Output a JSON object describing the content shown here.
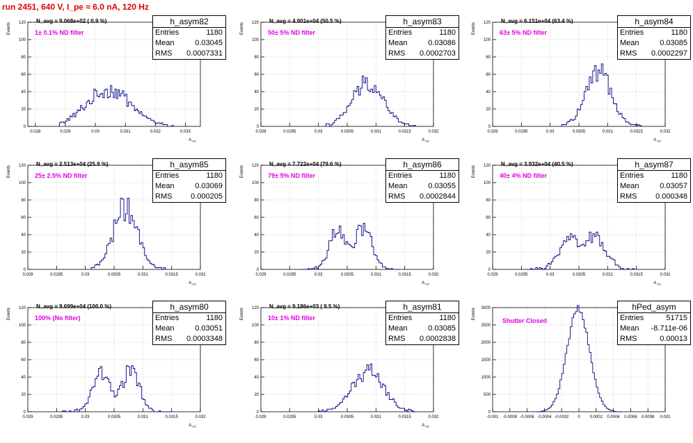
{
  "run_title": "run 2451,   640 V, I_pe ≈ 6.0 nA, 120 Hz",
  "chart_data": [
    {
      "type": "bar",
      "name": "h_asym82",
      "n_avg": "N_avg = 9.068e+02 ( 0.9 %)",
      "note": "1± 0.1% ND filter",
      "entries": "1180",
      "mean": "0.03045",
      "rms": "0.0007331",
      "ylabel": "Events",
      "xlabel": "A_UD",
      "ylim": [
        0,
        120
      ],
      "yticks": [
        "0",
        "20",
        "40",
        "60",
        "80",
        "100",
        "120"
      ],
      "xlim": [
        0.02775,
        0.0335
      ],
      "xticks": [
        {
          "v": 0.028,
          "l": "0.028"
        },
        {
          "v": 0.029,
          "l": "0.029"
        },
        {
          "v": 0.03,
          "l": "0.03"
        },
        {
          "v": 0.031,
          "l": "0.031"
        },
        {
          "v": 0.032,
          "l": "0.032"
        },
        {
          "v": 0.033,
          "l": "0.033"
        }
      ],
      "dist": {
        "kind": "gauss",
        "center": 0.03045,
        "sigma": 0.00075,
        "peak": 42,
        "bin": 5e-05,
        "lo": 0.0288,
        "hi": 0.0326
      }
    },
    {
      "type": "bar",
      "name": "h_asym83",
      "n_avg": "N_avg = 4.901e+04 (50.5 %)",
      "note": "50± 5% ND filter",
      "entries": "1180",
      "mean": "0.03086",
      "rms": "0.0002703",
      "ylabel": "Events",
      "xlabel": "A_UD",
      "ylim": [
        0,
        120
      ],
      "yticks": [
        "0",
        "20",
        "40",
        "60",
        "80",
        "100",
        "120"
      ],
      "xlim": [
        0.029,
        0.032
      ],
      "xticks": [
        {
          "v": 0.029,
          "l": "0.029"
        },
        {
          "v": 0.0295,
          "l": "0.0295"
        },
        {
          "v": 0.03,
          "l": "0.03"
        },
        {
          "v": 0.0305,
          "l": "0.0305"
        },
        {
          "v": 0.031,
          "l": "0.031"
        },
        {
          "v": 0.0315,
          "l": "0.0315"
        },
        {
          "v": 0.032,
          "l": "0.032"
        }
      ],
      "dist": {
        "kind": "gauss",
        "center": 0.03086,
        "sigma": 0.00027,
        "peak": 50,
        "bin": 3e-05,
        "lo": 0.0301,
        "hi": 0.0317
      }
    },
    {
      "type": "bar",
      "name": "h_asym84",
      "n_avg": "N_avg = 6.151e+04 (63.4 %)",
      "note": "63± 5% ND filter",
      "entries": "1180",
      "mean": "0.03085",
      "rms": "0.0002297",
      "ylabel": "Events",
      "xlabel": "A_UD",
      "ylim": [
        0,
        120
      ],
      "yticks": [
        "0",
        "20",
        "40",
        "60",
        "80",
        "100",
        "120"
      ],
      "xlim": [
        0.029,
        0.032
      ],
      "xticks": [
        {
          "v": 0.029,
          "l": "0.029"
        },
        {
          "v": 0.0295,
          "l": "0.0295"
        },
        {
          "v": 0.03,
          "l": "0.03"
        },
        {
          "v": 0.0305,
          "l": "0.0305"
        },
        {
          "v": 0.031,
          "l": "0.031"
        },
        {
          "v": 0.0315,
          "l": "0.0315"
        },
        {
          "v": 0.032,
          "l": "0.032"
        }
      ],
      "dist": {
        "kind": "gauss",
        "center": 0.03085,
        "sigma": 0.00023,
        "peak": 60,
        "bin": 3e-05,
        "lo": 0.0302,
        "hi": 0.0316
      }
    },
    {
      "type": "bar",
      "name": "h_asym85",
      "n_avg": "N_avg = 2.513e+04 (25.9 %)",
      "note": "25± 2.5% ND filter",
      "entries": "1180",
      "mean": "0.03069",
      "rms": "0.000205",
      "ylabel": "Events",
      "xlabel": "A_UD",
      "ylim": [
        0,
        120
      ],
      "yticks": [
        "0",
        "20",
        "40",
        "60",
        "80",
        "100",
        "120"
      ],
      "xlim": [
        0.029,
        0.032
      ],
      "xticks": [
        {
          "v": 0.029,
          "l": "0.029"
        },
        {
          "v": 0.0295,
          "l": "0.0295"
        },
        {
          "v": 0.03,
          "l": "0.03"
        },
        {
          "v": 0.0305,
          "l": "0.0305"
        },
        {
          "v": 0.031,
          "l": "0.031"
        },
        {
          "v": 0.0315,
          "l": "0.0315"
        },
        {
          "v": 0.032,
          "l": "0.032"
        }
      ],
      "dist": {
        "kind": "gauss",
        "center": 0.03069,
        "sigma": 0.00021,
        "peak": 70,
        "bin": 3e-05,
        "lo": 0.0301,
        "hi": 0.0314
      }
    },
    {
      "type": "bar",
      "name": "h_asym86",
      "n_avg": "N_avg = 7.722e+04 (79.6 %)",
      "note": "79± 5% ND filter",
      "entries": "1180",
      "mean": "0.03055",
      "rms": "0.0002844",
      "ylabel": "Events",
      "xlabel": "A_UD",
      "ylim": [
        0,
        120
      ],
      "yticks": [
        "0",
        "20",
        "40",
        "60",
        "80",
        "100",
        "120"
      ],
      "xlim": [
        0.029,
        0.032
      ],
      "xticks": [
        {
          "v": 0.029,
          "l": "0.029"
        },
        {
          "v": 0.0295,
          "l": "0.0295"
        },
        {
          "v": 0.03,
          "l": "0.03"
        },
        {
          "v": 0.0305,
          "l": "0.0305"
        },
        {
          "v": 0.031,
          "l": "0.031"
        },
        {
          "v": 0.0315,
          "l": "0.0315"
        },
        {
          "v": 0.032,
          "l": "0.032"
        }
      ],
      "dist": {
        "kind": "double",
        "c1": 0.03035,
        "c2": 0.03078,
        "sigma": 0.00015,
        "peak": 47,
        "bin": 3e-05,
        "lo": 0.0297,
        "hi": 0.0314
      }
    },
    {
      "type": "bar",
      "name": "h_asym87",
      "n_avg": "N_avg = 3.932e+04 (40.5 %)",
      "note": "40± 4% ND filter",
      "entries": "1180",
      "mean": "0.03057",
      "rms": "0.000348",
      "ylabel": "Events",
      "xlabel": "A_UD",
      "ylim": [
        0,
        120
      ],
      "yticks": [
        "0",
        "20",
        "40",
        "60",
        "80",
        "100",
        "120"
      ],
      "xlim": [
        0.029,
        0.032
      ],
      "xticks": [
        {
          "v": 0.029,
          "l": "0.029"
        },
        {
          "v": 0.0295,
          "l": "0.0295"
        },
        {
          "v": 0.03,
          "l": "0.03"
        },
        {
          "v": 0.0305,
          "l": "0.0305"
        },
        {
          "v": 0.031,
          "l": "0.031"
        },
        {
          "v": 0.0315,
          "l": "0.0315"
        },
        {
          "v": 0.032,
          "l": "0.032"
        }
      ],
      "dist": {
        "kind": "double",
        "c1": 0.03035,
        "c2": 0.03078,
        "sigma": 0.00019,
        "peak": 38,
        "bin": 3e-05,
        "lo": 0.0296,
        "hi": 0.0315
      }
    },
    {
      "type": "bar",
      "name": "h_asym80",
      "n_avg": "N_avg = 9.699e+04 (100.0 %)",
      "note": "100% (No filter)",
      "entries": "1180",
      "mean": "0.03051",
      "rms": "0.0003348",
      "ylabel": "Events",
      "xlabel": "A_UD",
      "ylim": [
        0,
        120
      ],
      "yticks": [
        "0",
        "20",
        "40",
        "60",
        "80",
        "100",
        "120"
      ],
      "xlim": [
        0.029,
        0.032
      ],
      "xticks": [
        {
          "v": 0.029,
          "l": "0.029"
        },
        {
          "v": 0.0295,
          "l": "0.0295"
        },
        {
          "v": 0.03,
          "l": "0.03"
        },
        {
          "v": 0.0305,
          "l": "0.0305"
        },
        {
          "v": 0.031,
          "l": "0.031"
        },
        {
          "v": 0.0315,
          "l": "0.0315"
        },
        {
          "v": 0.032,
          "l": "0.032"
        }
      ],
      "dist": {
        "kind": "double",
        "c1": 0.03029,
        "c2": 0.03078,
        "sigma": 0.00016,
        "peak": 46,
        "bin": 3e-05,
        "lo": 0.0296,
        "hi": 0.0315
      }
    },
    {
      "type": "bar",
      "name": "h_asym81",
      "n_avg": "N_avg = 9.186e+03 ( 9.5 %)",
      "note": "10± 1% ND filter",
      "entries": "1180",
      "mean": "0.03085",
      "rms": "0.0002838",
      "ylabel": "Events",
      "xlabel": "A_UD",
      "ylim": [
        0,
        120
      ],
      "yticks": [
        "0",
        "20",
        "40",
        "60",
        "80",
        "100",
        "120"
      ],
      "xlim": [
        0.029,
        0.032
      ],
      "xticks": [
        {
          "v": 0.029,
          "l": "0.029"
        },
        {
          "v": 0.0295,
          "l": "0.0295"
        },
        {
          "v": 0.03,
          "l": "0.03"
        },
        {
          "v": 0.0305,
          "l": "0.0305"
        },
        {
          "v": 0.031,
          "l": "0.031"
        },
        {
          "v": 0.0315,
          "l": "0.0315"
        },
        {
          "v": 0.032,
          "l": "0.032"
        }
      ],
      "dist": {
        "kind": "gauss",
        "center": 0.03085,
        "sigma": 0.00027,
        "peak": 48,
        "bin": 3e-05,
        "lo": 0.03,
        "hi": 0.0317
      }
    },
    {
      "type": "bar",
      "name": "hPed_asym",
      "n_avg": "",
      "note": "Shutter Closed",
      "entries": "51715",
      "mean": "-8.711e-06",
      "rms": "0.00013",
      "ylabel": "Events",
      "xlabel": "",
      "ylim": [
        0,
        3000
      ],
      "yticks": [
        "0",
        "500",
        "1000",
        "1500",
        "2000",
        "2500",
        "3000"
      ],
      "xlim": [
        -0.001,
        0.001
      ],
      "xticks": [
        {
          "v": -0.001,
          "l": "-0.001"
        },
        {
          "v": -0.0008,
          "l": "-0.0008"
        },
        {
          "v": -0.0006,
          "l": "-0.0006"
        },
        {
          "v": -0.0004,
          "l": "-0.0004"
        },
        {
          "v": -0.0002,
          "l": "-0.0002"
        },
        {
          "v": 0,
          "l": "0"
        },
        {
          "v": 0.0002,
          "l": "0.0002"
        },
        {
          "v": 0.0004,
          "l": "0.0004"
        },
        {
          "v": 0.0006,
          "l": "0.0006"
        },
        {
          "v": 0.0008,
          "l": "0.0008"
        },
        {
          "v": 0.001,
          "l": "0.001"
        }
      ],
      "dist": {
        "kind": "gauss",
        "center": -8.7e-06,
        "sigma": 0.00013,
        "peak": 2950,
        "bin": 2e-05,
        "lo": -0.0005,
        "hi": 0.0005
      }
    }
  ]
}
